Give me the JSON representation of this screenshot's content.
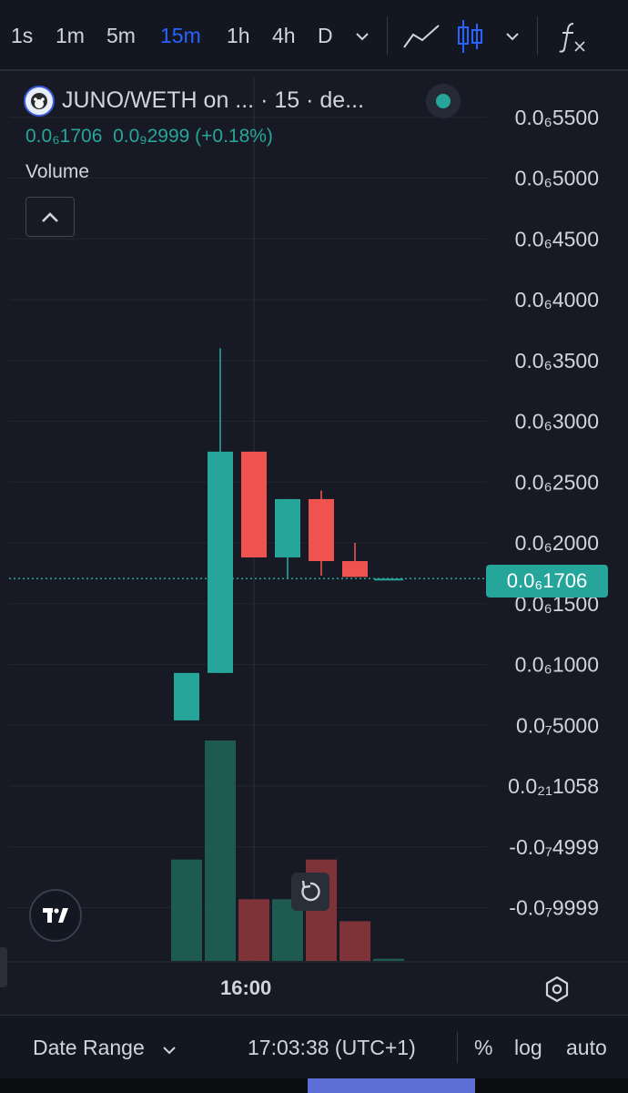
{
  "toolbar": {
    "timeframes": [
      "1s",
      "1m",
      "5m",
      "15m",
      "1h",
      "4h",
      "D"
    ],
    "active_timeframe": "15m"
  },
  "legend": {
    "title": "JUNO/WETH on ... · 15 · de...",
    "price": "0.0₆1706",
    "change": "0.0₉2999 (+0.18%)",
    "volume_label": "Volume",
    "status_color": "#26a69a"
  },
  "price_tag": {
    "label": "0.0₆1706",
    "color": "#26a69a"
  },
  "colors": {
    "up": "#26a69a",
    "down": "#ef5350",
    "up_volume": "#1e5a52",
    "down_volume": "#7d3337"
  },
  "chart_data": {
    "type": "candlestick",
    "y_tick_labels": [
      "0.0₆5500",
      "0.0₆5000",
      "0.0₆4500",
      "0.0₆4000",
      "0.0₆3500",
      "0.0₆3000",
      "0.0₆2500",
      "0.0₆2000",
      "0.0₆1500",
      "0.0₆1000",
      "0.0₇5000",
      "0.0₂₁1058",
      "-0.0₇4999",
      "-0.0₇9999"
    ],
    "y_tick_values": [
      5.5e-07,
      5e-07,
      4.5e-07,
      4e-07,
      3.5e-07,
      3e-07,
      2.5e-07,
      2e-07,
      1.5e-07,
      1e-07,
      5e-08,
      0,
      -5e-08,
      -1e-07
    ],
    "ylim": [
      -1.4e-07,
      5.9e-07
    ],
    "x_tick_labels": [
      {
        "label": "16:00",
        "index": 2
      }
    ],
    "candles": [
      {
        "open": 5.4e-08,
        "high": 9.3e-08,
        "low": 5.4e-08,
        "close": 9.3e-08
      },
      {
        "open": 9.3e-08,
        "high": 3.6e-07,
        "low": 9.3e-08,
        "close": 2.75e-07
      },
      {
        "open": 2.75e-07,
        "high": 2.75e-07,
        "low": 1.88e-07,
        "close": 1.88e-07
      },
      {
        "open": 1.88e-07,
        "high": 2.36e-07,
        "low": 1.7e-07,
        "close": 2.36e-07
      },
      {
        "open": 2.36e-07,
        "high": 2.43e-07,
        "low": 1.73e-07,
        "close": 1.85e-07
      },
      {
        "open": 1.85e-07,
        "high": 2e-07,
        "low": 1.72e-07,
        "close": 1.72e-07
      },
      {
        "open": 1.706e-07,
        "high": 1.706e-07,
        "low": 1.706e-07,
        "close": 1.706e-07
      }
    ],
    "volumes": [
      0.46,
      1.0,
      0.28,
      0.28,
      0.46,
      0.18,
      0.01
    ],
    "last_price": 1.706e-07
  },
  "axis": {
    "time_label": "16:00"
  },
  "bottom_bar": {
    "date_range": "Date Range",
    "clock": "17:03:38 (UTC+1)",
    "percent": "%",
    "log": "log",
    "auto": "auto"
  }
}
